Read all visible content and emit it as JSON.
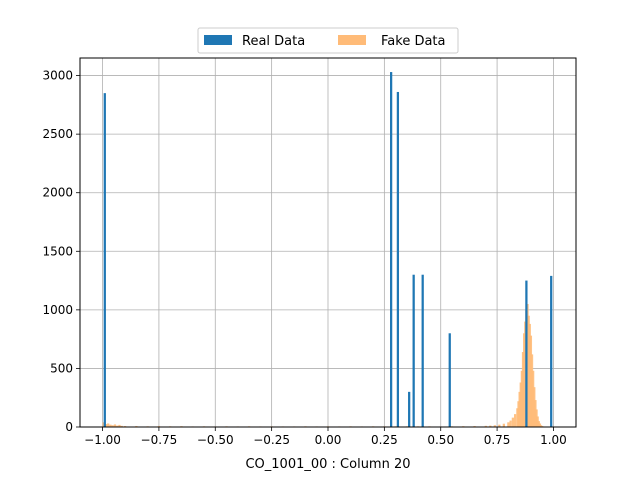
{
  "chart_data": {
    "type": "bar",
    "subtype": "histogram-overlay",
    "title": "",
    "xlabel": "CO_1001_00 : Column 20",
    "ylabel": "",
    "xlim": [
      -1.1,
      1.1
    ],
    "ylim": [
      0,
      3150
    ],
    "xticks": [
      -1.0,
      -0.75,
      -0.5,
      -0.25,
      0.0,
      0.25,
      0.5,
      0.75,
      1.0
    ],
    "xtick_labels": [
      "−1.00",
      "−0.75",
      "−0.50",
      "−0.25",
      "0.00",
      "0.25",
      "0.50",
      "0.75",
      "1.00"
    ],
    "yticks": [
      0,
      500,
      1000,
      1500,
      2000,
      2500,
      3000
    ],
    "ytick_labels": [
      "0",
      "500",
      "1000",
      "1500",
      "2000",
      "2500",
      "3000"
    ],
    "grid": true,
    "legend": {
      "placement": "top-center",
      "columns": 2
    },
    "series": [
      {
        "name": "Real Data",
        "color": "#1f77b4",
        "bar_width": 0.01,
        "x": [
          -0.99,
          0.28,
          0.31,
          0.36,
          0.38,
          0.42,
          0.54,
          0.88,
          0.99
        ],
        "values": [
          2850,
          3030,
          2860,
          300,
          1300,
          1300,
          800,
          1250,
          1290
        ]
      },
      {
        "name": "Fake Data",
        "color": "#ffbb78",
        "bar_width": 0.01,
        "x": [
          -0.995,
          -0.985,
          -0.975,
          -0.965,
          -0.955,
          -0.945,
          -0.935,
          -0.925,
          -0.915,
          -0.9,
          -0.85,
          -0.8,
          -0.75,
          -0.7,
          -0.65,
          -0.6,
          -0.55,
          -0.5,
          -0.45,
          -0.4,
          -0.35,
          -0.3,
          -0.25,
          -0.2,
          -0.15,
          -0.1,
          -0.05,
          0.0,
          0.05,
          0.1,
          0.15,
          0.2,
          0.25,
          0.3,
          0.35,
          0.4,
          0.45,
          0.5,
          0.55,
          0.6,
          0.65,
          0.7,
          0.72,
          0.74,
          0.76,
          0.78,
          0.8,
          0.81,
          0.82,
          0.83,
          0.84,
          0.845,
          0.85,
          0.855,
          0.86,
          0.865,
          0.87,
          0.875,
          0.88,
          0.885,
          0.89,
          0.895,
          0.9,
          0.905,
          0.91,
          0.915,
          0.92,
          0.925,
          0.93,
          0.935,
          0.94,
          0.945,
          0.95,
          0.96,
          0.97
        ],
        "values": [
          40,
          25,
          30,
          20,
          15,
          22,
          12,
          18,
          10,
          8,
          8,
          6,
          8,
          6,
          7,
          5,
          6,
          5,
          6,
          5,
          6,
          5,
          6,
          5,
          5,
          6,
          5,
          6,
          5,
          6,
          5,
          6,
          6,
          6,
          6,
          6,
          6,
          5,
          6,
          7,
          8,
          10,
          12,
          15,
          20,
          28,
          40,
          55,
          80,
          110,
          160,
          220,
          300,
          380,
          480,
          640,
          800,
          900,
          1000,
          1050,
          950,
          880,
          780,
          620,
          480,
          340,
          230,
          150,
          90,
          50,
          30,
          15,
          8,
          4,
          2
        ]
      }
    ]
  }
}
